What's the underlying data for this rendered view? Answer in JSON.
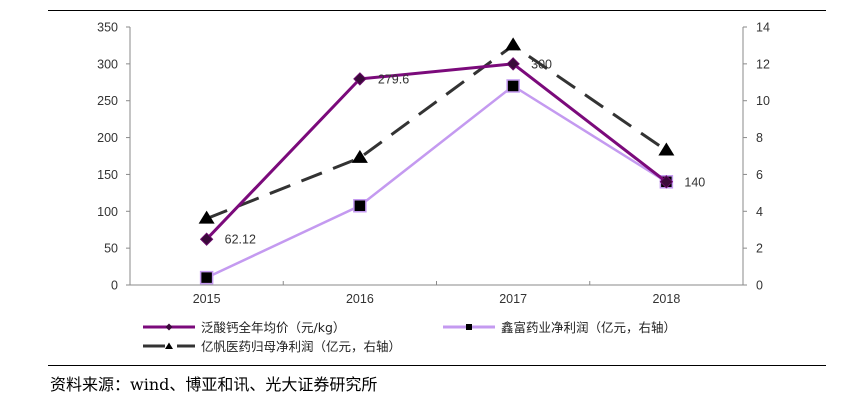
{
  "chart_data": {
    "type": "line",
    "title": "",
    "categories": [
      "2015",
      "2016",
      "2017",
      "2018"
    ],
    "xlabel": "",
    "ylabel": "",
    "ylim": [
      0,
      350
    ],
    "y_ticks": [
      0,
      50,
      100,
      150,
      200,
      250,
      300,
      350
    ],
    "y2lim": [
      0,
      14
    ],
    "y2_ticks": [
      0,
      2,
      4,
      6,
      8,
      10,
      12,
      14
    ],
    "grid": false,
    "legend_position": "bottom",
    "series": [
      {
        "name": "泛酸钙全年均价（元/kg）",
        "axis": "left",
        "color": "#7B0A7B",
        "marker": "diamond",
        "line": "solid",
        "values": [
          62.12,
          279.6,
          300,
          140
        ],
        "data_labels": [
          "62.12",
          "279.6",
          "300",
          "140"
        ]
      },
      {
        "name": "鑫富药业净利润（亿元，右轴）",
        "axis": "right",
        "color": "#C49AF0",
        "marker": "square",
        "line": "solid",
        "values": [
          0.4,
          4.3,
          10.8,
          5.6
        ]
      },
      {
        "name": "亿帆医药归母净利润（亿元，右轴）",
        "axis": "right",
        "color": "#333333",
        "marker": "triangle",
        "line": "dashed",
        "values": [
          3.6,
          6.9,
          13.0,
          7.3
        ]
      }
    ]
  },
  "legend": {
    "item1": "泛酸钙全年均价（元/kg）",
    "item2": "鑫富药业净利润（亿元，右轴）",
    "item3": "亿帆医药归母净利润（亿元，右轴）"
  },
  "source": "资料来源：wind、博亚和讯、光大证券研究所"
}
